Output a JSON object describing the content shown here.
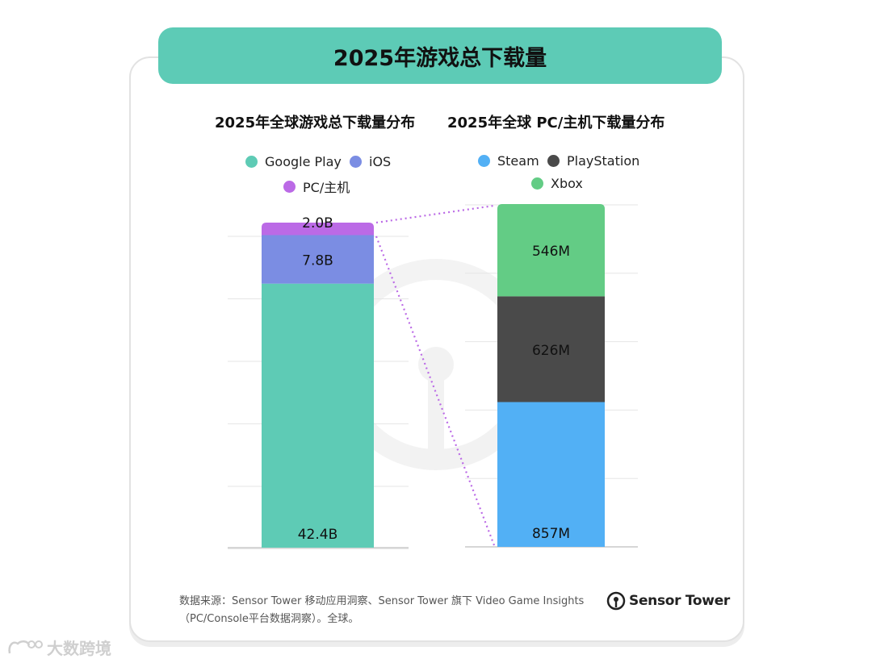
{
  "title": "2025年游戏总下载量",
  "watermark_text": "大数跨境",
  "footer": {
    "line1": "数据来源：Sensor Tower 移动应用洞察、Sensor Tower 旗下 Video Game Insights",
    "line2": "（PC/Console平台数据洞察）。全球。"
  },
  "brand": {
    "name": "Sensor Tower",
    "icon": "sensor-tower-logo-icon"
  },
  "colors": {
    "banner": "#5dcbb6",
    "google_play": "#5ecbb5",
    "ios": "#7b8de3",
    "pc_console": "#bb6ae6",
    "steam": "#52b0f5",
    "playstation": "#4a4a4a",
    "xbox": "#63cc85",
    "connector": "#bb6ae6"
  },
  "chart_data": [
    {
      "type": "bar",
      "stacked": true,
      "title": "2025年全球游戏总下载量分布",
      "legend": [
        "Google Play",
        "iOS",
        "PC/主机"
      ],
      "legend_position": "top",
      "series": [
        {
          "name": "Google Play",
          "values": [
            42.4
          ],
          "label": "42.4B"
        },
        {
          "name": "iOS",
          "values": [
            7.8
          ],
          "label": "7.8B"
        },
        {
          "name": "PC/主机",
          "values": [
            2.0
          ],
          "label": "2.0B"
        }
      ],
      "ylim": [
        0,
        52.2
      ],
      "grid": true,
      "unit": "B"
    },
    {
      "type": "bar",
      "stacked": true,
      "title": "2025年全球 PC/主机下载量分布",
      "legend": [
        "Steam",
        "PlayStation",
        "Xbox"
      ],
      "legend_position": "top",
      "series": [
        {
          "name": "Steam",
          "values": [
            857
          ],
          "label": "857M"
        },
        {
          "name": "PlayStation",
          "values": [
            626
          ],
          "label": "626M"
        },
        {
          "name": "Xbox",
          "values": [
            546
          ],
          "label": "546M"
        }
      ],
      "ylim": [
        0,
        2029
      ],
      "grid": true,
      "unit": "M"
    }
  ]
}
